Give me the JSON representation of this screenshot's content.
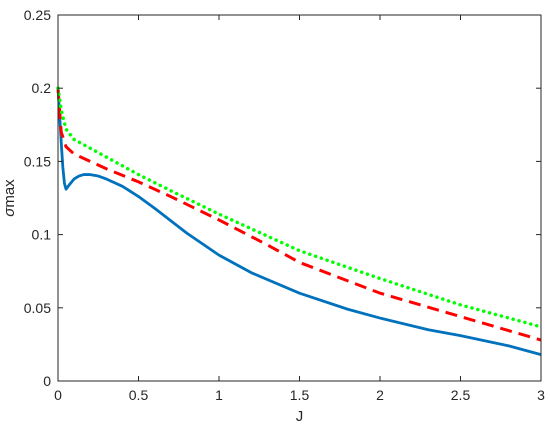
{
  "chart_data": {
    "type": "line",
    "title": "",
    "xlabel": "J",
    "ylabel_symbol": "σ",
    "ylabel_text": "max",
    "xlim": [
      0,
      3
    ],
    "ylim": [
      0,
      0.25
    ],
    "grid": false,
    "legend": "none",
    "x_ticks": [
      0,
      0.5,
      1,
      1.5,
      2,
      2.5,
      3
    ],
    "x_tick_labels": [
      "0",
      "0.5",
      "1",
      "1.5",
      "2",
      "2.5",
      "3"
    ],
    "y_ticks": [
      0,
      0.05,
      0.1,
      0.15,
      0.2,
      0.25
    ],
    "y_tick_labels": [
      "0",
      "0.05",
      "0.1",
      "0.15",
      "0.2",
      "0.25"
    ],
    "series": [
      {
        "color": "#0072BD",
        "style": "solid",
        "x": [
          0,
          0.01,
          0.02,
          0.03,
          0.04,
          0.05,
          0.07,
          0.1,
          0.13,
          0.16,
          0.2,
          0.25,
          0.3,
          0.4,
          0.5,
          0.6,
          0.8,
          1.0,
          1.2,
          1.5,
          1.8,
          2.0,
          2.3,
          2.5,
          2.8,
          3.0
        ],
        "y": [
          0.2,
          0.182,
          0.163,
          0.146,
          0.135,
          0.131,
          0.134,
          0.138,
          0.14,
          0.141,
          0.141,
          0.14,
          0.138,
          0.133,
          0.126,
          0.118,
          0.101,
          0.086,
          0.074,
          0.06,
          0.049,
          0.043,
          0.035,
          0.031,
          0.024,
          0.018
        ]
      },
      {
        "color": "#FF0000",
        "style": "dashed",
        "x": [
          0,
          0.02,
          0.05,
          0.1,
          0.2,
          0.3,
          0.5,
          0.7,
          1.0,
          1.3,
          1.5,
          2.0,
          2.5,
          3.0
        ],
        "y": [
          0.2,
          0.17,
          0.16,
          0.155,
          0.15,
          0.145,
          0.136,
          0.126,
          0.11,
          0.093,
          0.081,
          0.06,
          0.044,
          0.028
        ]
      },
      {
        "color": "#00FF00",
        "style": "dotted",
        "x": [
          0,
          0.02,
          0.05,
          0.1,
          0.15,
          0.2,
          0.3,
          0.5,
          0.7,
          1.0,
          1.5,
          2.0,
          2.5,
          3.0
        ],
        "y": [
          0.2,
          0.185,
          0.172,
          0.165,
          0.162,
          0.159,
          0.153,
          0.141,
          0.13,
          0.114,
          0.089,
          0.07,
          0.052,
          0.037
        ]
      }
    ]
  }
}
